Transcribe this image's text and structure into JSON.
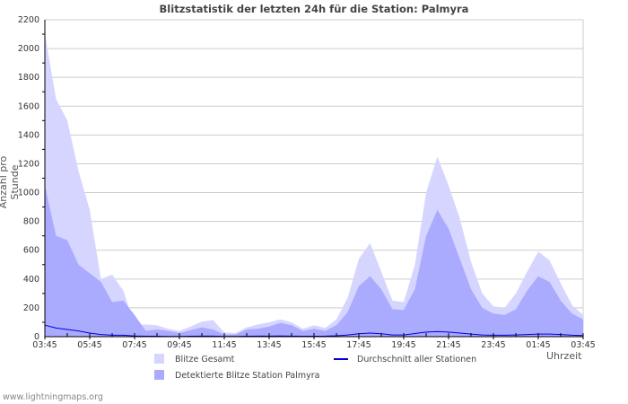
{
  "chart_data": {
    "type": "area",
    "title": "Blitzstatistik der letzten 24h für die Station: Palmyra",
    "xlabel": "Uhrzeit",
    "ylabel": "Anzahl pro Stunde",
    "ylim": [
      0,
      2200
    ],
    "yticks": [
      0,
      200,
      400,
      600,
      800,
      1000,
      1200,
      1400,
      1600,
      1800,
      2000,
      2200
    ],
    "xtick_labels": [
      "03:45",
      "05:45",
      "07:45",
      "09:45",
      "11:45",
      "13:45",
      "15:45",
      "17:45",
      "19:45",
      "21:45",
      "23:45",
      "01:45",
      "03:45"
    ],
    "x": [
      "03:45",
      "04:15",
      "04:45",
      "05:15",
      "05:45",
      "06:15",
      "06:45",
      "07:15",
      "07:45",
      "08:15",
      "08:45",
      "09:15",
      "09:45",
      "10:15",
      "10:45",
      "11:15",
      "11:45",
      "12:15",
      "12:45",
      "13:15",
      "13:45",
      "14:15",
      "14:45",
      "15:15",
      "15:45",
      "16:15",
      "16:45",
      "17:15",
      "17:45",
      "18:15",
      "18:45",
      "19:15",
      "19:45",
      "20:15",
      "20:45",
      "21:15",
      "21:45",
      "22:15",
      "22:45",
      "23:15",
      "23:45",
      "00:15",
      "00:45",
      "01:15",
      "01:45",
      "02:15",
      "02:45",
      "03:15",
      "03:45"
    ],
    "grid": true,
    "legend_position": "bottom",
    "series": [
      {
        "name": "Blitze Gesamt",
        "color": "#d5d5ff",
        "values": [
          2100,
          1650,
          1500,
          1150,
          880,
          400,
          430,
          320,
          80,
          85,
          80,
          55,
          40,
          70,
          105,
          115,
          30,
          25,
          65,
          85,
          100,
          120,
          100,
          55,
          80,
          60,
          120,
          270,
          540,
          650,
          450,
          250,
          240,
          500,
          1000,
          1250,
          1050,
          820,
          520,
          300,
          210,
          200,
          300,
          450,
          590,
          530,
          370,
          220,
          150
        ]
      },
      {
        "name": "Detektierte Blitze Station Palmyra",
        "color": "#aaaaff",
        "values": [
          1050,
          700,
          670,
          500,
          440,
          380,
          240,
          250,
          150,
          40,
          50,
          40,
          25,
          45,
          65,
          50,
          15,
          15,
          50,
          55,
          70,
          95,
          80,
          40,
          55,
          40,
          80,
          170,
          350,
          420,
          330,
          190,
          185,
          330,
          700,
          880,
          750,
          540,
          330,
          200,
          160,
          150,
          190,
          320,
          420,
          380,
          250,
          160,
          120
        ]
      },
      {
        "name": "Durchschnitt aller Stationen",
        "color": "#0000dd",
        "values": [
          80,
          60,
          50,
          40,
          25,
          15,
          10,
          10,
          5,
          3,
          3,
          2,
          2,
          3,
          4,
          4,
          2,
          2,
          3,
          4,
          4,
          5,
          4,
          3,
          3,
          4,
          6,
          12,
          20,
          25,
          20,
          12,
          12,
          22,
          32,
          35,
          32,
          25,
          18,
          12,
          10,
          10,
          12,
          15,
          18,
          18,
          15,
          10,
          8
        ]
      }
    ]
  },
  "footer": "www.lightningmaps.org"
}
